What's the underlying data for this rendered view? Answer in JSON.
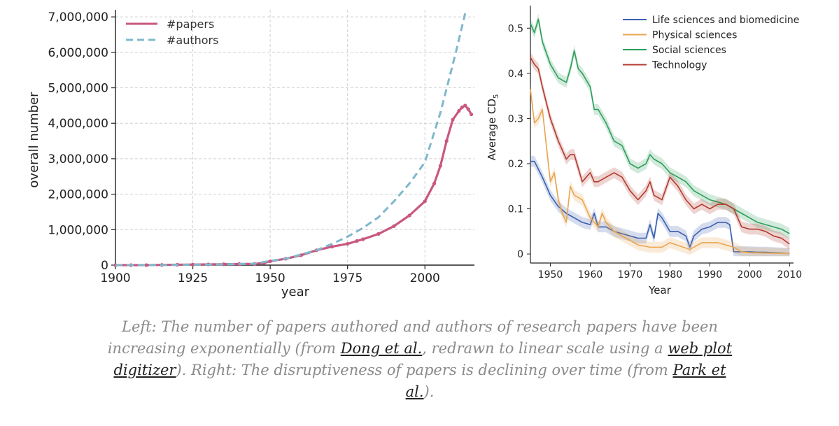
{
  "chart_data": [
    {
      "type": "line",
      "xlabel": "year",
      "ylabel": "overall number",
      "xlim": [
        1900,
        2016
      ],
      "ylim": [
        0,
        7200000
      ],
      "xticks": [
        1900,
        1925,
        1950,
        1975,
        2000
      ],
      "yticks": [
        0,
        1000000,
        2000000,
        3000000,
        4000000,
        5000000,
        6000000,
        7000000
      ],
      "xtick_labels": [
        "1900",
        "1925",
        "1950",
        "1975",
        "2000"
      ],
      "ytick_labels": [
        "0",
        "1,000,000",
        "2,000,000",
        "3,000,000",
        "4,000,000",
        "5,000,000",
        "6,000,000",
        "7,000,000"
      ],
      "grid": true,
      "legend": "top-left",
      "series": [
        {
          "name": "#papers",
          "style": "solid-markers",
          "color": "#c9577f",
          "x": [
            1900,
            1905,
            1910,
            1915,
            1920,
            1925,
            1930,
            1935,
            1940,
            1945,
            1948,
            1950,
            1955,
            1960,
            1965,
            1970,
            1975,
            1978,
            1980,
            1985,
            1990,
            1995,
            2000,
            2003,
            2005,
            2007,
            2009,
            2011,
            2012,
            2013,
            2014,
            2015
          ],
          "y": [
            0,
            0,
            0,
            5000,
            10000,
            15000,
            20000,
            25000,
            30000,
            35000,
            60000,
            110000,
            180000,
            280000,
            420000,
            520000,
            600000,
            680000,
            730000,
            880000,
            1100000,
            1400000,
            1800000,
            2300000,
            2800000,
            3500000,
            4100000,
            4350000,
            4450000,
            4500000,
            4400000,
            4250000
          ]
        },
        {
          "name": "#authors",
          "style": "dashed",
          "color": "#7fb8cc",
          "x": [
            1900,
            1910,
            1920,
            1930,
            1940,
            1945,
            1950,
            1955,
            1960,
            1965,
            1970,
            1975,
            1980,
            1985,
            1990,
            1995,
            2000,
            2005,
            2010,
            2013
          ],
          "y": [
            0,
            0,
            5000,
            15000,
            30000,
            40000,
            120000,
            180000,
            300000,
            420000,
            600000,
            800000,
            1050000,
            1350000,
            1800000,
            2300000,
            2900000,
            4300000,
            6000000,
            7100000
          ]
        }
      ]
    },
    {
      "type": "line",
      "xlabel": "Year",
      "ylabel_main": "Average CD",
      "ylabel_sub": "5",
      "xlim": [
        1945,
        2011
      ],
      "ylim": [
        -0.02,
        0.55
      ],
      "xticks": [
        1950,
        1960,
        1970,
        1980,
        1990,
        2000,
        2010
      ],
      "yticks": [
        0,
        0.1,
        0.2,
        0.3,
        0.4,
        0.5
      ],
      "xtick_labels": [
        "1950",
        "1960",
        "1970",
        "1980",
        "1990",
        "2000",
        "2010"
      ],
      "ytick_labels": [
        "0",
        "0.1",
        "0.2",
        "0.3",
        "0.4",
        "0.5"
      ],
      "grid": false,
      "legend": "top-right",
      "series": [
        {
          "name": "Life sciences and biomedicine",
          "color": "#3a5fb0",
          "x": [
            1945,
            1946,
            1948,
            1950,
            1952,
            1954,
            1956,
            1958,
            1960,
            1961,
            1962,
            1964,
            1966,
            1968,
            1970,
            1972,
            1974,
            1975,
            1976,
            1977,
            1978,
            1980,
            1982,
            1984,
            1985,
            1986,
            1988,
            1990,
            1992,
            1994,
            1995,
            1996,
            1998,
            2000,
            2002,
            2004,
            2006,
            2008,
            2010
          ],
          "y": [
            0.205,
            0.205,
            0.17,
            0.13,
            0.105,
            0.09,
            0.08,
            0.07,
            0.065,
            0.09,
            0.06,
            0.06,
            0.05,
            0.045,
            0.04,
            0.035,
            0.035,
            0.065,
            0.035,
            0.09,
            0.08,
            0.05,
            0.05,
            0.04,
            0.015,
            0.04,
            0.055,
            0.06,
            0.07,
            0.07,
            0.065,
            0.005,
            0.005,
            0.005,
            0.004,
            0.004,
            0.003,
            0.002,
            0.001
          ]
        },
        {
          "name": "Physical sciences",
          "color": "#e8a650",
          "x": [
            1945,
            1946,
            1947,
            1948,
            1950,
            1951,
            1952,
            1953,
            1954,
            1955,
            1956,
            1958,
            1960,
            1962,
            1963,
            1964,
            1966,
            1968,
            1970,
            1972,
            1975,
            1978,
            1980,
            1985,
            1988,
            1990,
            1992,
            1994,
            1996,
            1998,
            2000,
            2005,
            2010
          ],
          "y": [
            0.365,
            0.29,
            0.3,
            0.32,
            0.16,
            0.18,
            0.12,
            0.09,
            0.07,
            0.15,
            0.13,
            0.12,
            0.08,
            0.06,
            0.09,
            0.07,
            0.05,
            0.04,
            0.03,
            0.02,
            0.015,
            0.015,
            0.025,
            0.01,
            0.025,
            0.025,
            0.025,
            0.02,
            0.015,
            0.005,
            0.003,
            0.002,
            0.001
          ]
        },
        {
          "name": "Social sciences",
          "color": "#2e9e5b",
          "x": [
            1945,
            1946,
            1947,
            1948,
            1950,
            1952,
            1954,
            1955,
            1956,
            1957,
            1958,
            1960,
            1961,
            1962,
            1964,
            1966,
            1968,
            1970,
            1972,
            1974,
            1975,
            1976,
            1978,
            1980,
            1982,
            1984,
            1986,
            1988,
            1990,
            1992,
            1994,
            1996,
            1998,
            2000,
            2002,
            2004,
            2006,
            2008,
            2010
          ],
          "y": [
            0.51,
            0.49,
            0.52,
            0.47,
            0.42,
            0.39,
            0.38,
            0.41,
            0.45,
            0.41,
            0.4,
            0.37,
            0.32,
            0.32,
            0.29,
            0.25,
            0.24,
            0.2,
            0.19,
            0.2,
            0.22,
            0.21,
            0.2,
            0.18,
            0.17,
            0.16,
            0.14,
            0.13,
            0.12,
            0.115,
            0.11,
            0.1,
            0.09,
            0.08,
            0.07,
            0.065,
            0.06,
            0.055,
            0.045
          ]
        },
        {
          "name": "Technology",
          "color": "#b23a2e",
          "x": [
            1945,
            1946,
            1947,
            1948,
            1950,
            1952,
            1954,
            1955,
            1956,
            1958,
            1960,
            1961,
            1962,
            1964,
            1966,
            1968,
            1970,
            1972,
            1974,
            1975,
            1976,
            1978,
            1980,
            1982,
            1984,
            1986,
            1988,
            1990,
            1992,
            1994,
            1996,
            1998,
            2000,
            2002,
            2004,
            2006,
            2008,
            2010
          ],
          "y": [
            0.435,
            0.42,
            0.41,
            0.37,
            0.3,
            0.25,
            0.21,
            0.22,
            0.22,
            0.16,
            0.18,
            0.16,
            0.16,
            0.17,
            0.18,
            0.17,
            0.14,
            0.12,
            0.14,
            0.16,
            0.13,
            0.12,
            0.17,
            0.15,
            0.12,
            0.1,
            0.11,
            0.1,
            0.11,
            0.11,
            0.1,
            0.06,
            0.055,
            0.055,
            0.05,
            0.04,
            0.035,
            0.022
          ]
        }
      ]
    }
  ],
  "caption": {
    "part1": "Left: The number of papers authored and authors of research papers have been increasing exponentially (from ",
    "link1": "Dong et al.",
    "part2": ", redrawn to linear scale using a ",
    "link2": "web plot digitizer",
    "part3": "). Right: The disruptiveness of papers is declining over time (from ",
    "link3": "Park et al.",
    "part4": ")."
  }
}
